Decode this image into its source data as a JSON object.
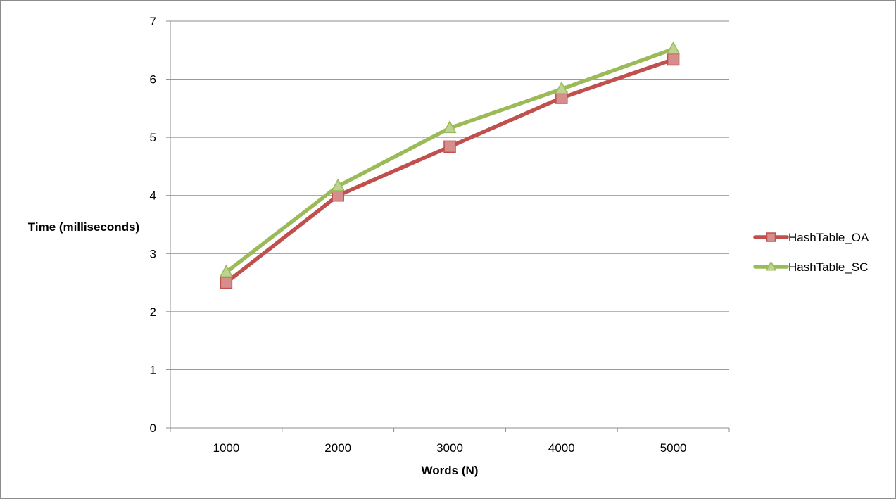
{
  "chart_data": {
    "type": "line",
    "title": "",
    "xlabel": "Words (N)",
    "ylabel": "Time (milliseconds)",
    "categories": [
      "1000",
      "2000",
      "3000",
      "4000",
      "5000"
    ],
    "ylim": [
      0,
      7
    ],
    "yticks": [
      0,
      1,
      2,
      3,
      4,
      5,
      6,
      7
    ],
    "grid": true,
    "legend_position": "right",
    "series": [
      {
        "name": "HashTable_OA",
        "color": "#c0504d",
        "marker": "square",
        "values": [
          2.5,
          4.0,
          4.84,
          5.68,
          6.34
        ]
      },
      {
        "name": "HashTable_SC",
        "color": "#9bbb59",
        "marker": "triangle",
        "values": [
          2.68,
          4.16,
          5.16,
          5.83,
          6.52
        ]
      }
    ]
  }
}
